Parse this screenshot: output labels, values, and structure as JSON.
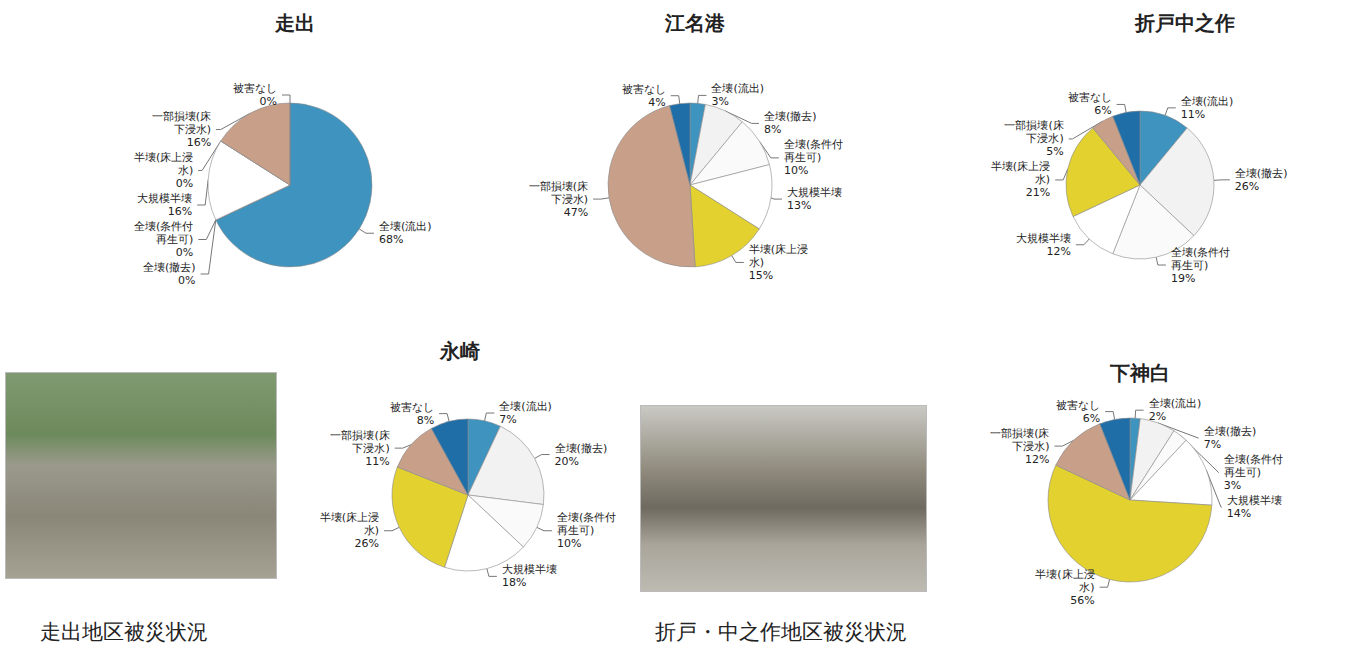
{
  "chart_data": [
    {
      "type": "pie",
      "title": "走出",
      "categories": [
        "全壊(流出)",
        "全壊(撤去)",
        "全壊(条件付再生可)",
        "大規模半壊",
        "半壊(床上浸水)",
        "一部損壊(床下浸水)",
        "被害なし"
      ],
      "values": [
        68,
        0,
        0,
        16,
        0,
        16,
        0
      ],
      "value_labels": [
        "68%",
        "0%",
        "0%",
        "16%",
        "0%",
        "16%",
        "0%"
      ],
      "colors": [
        "#3f93bf",
        "#f2f2f2",
        "#fafafa",
        "#ffffff",
        "#e3d130",
        "#c8a08a",
        "#1f6ea8"
      ],
      "data_labels": true
    },
    {
      "type": "pie",
      "title": "江名港",
      "categories": [
        "全壊(流出)",
        "全壊(撤去)",
        "全壊(条件付再生可)",
        "大規模半壊",
        "半壊(床上浸水)",
        "一部損壊(床下浸水)",
        "被害なし"
      ],
      "values": [
        3,
        8,
        10,
        13,
        15,
        47,
        4
      ],
      "value_labels": [
        "3%",
        "8%",
        "10%",
        "13%",
        "15%",
        "47%",
        "4%"
      ],
      "colors": [
        "#3f93bf",
        "#f2f2f2",
        "#fafafa",
        "#ffffff",
        "#e3d130",
        "#c8a08a",
        "#1f6ea8"
      ],
      "data_labels": true
    },
    {
      "type": "pie",
      "title": "折戸中之作",
      "categories": [
        "全壊(流出)",
        "全壊(撤去)",
        "全壊(条件付再生可)",
        "大規模半壊",
        "半壊(床上浸水)",
        "一部損壊(床下浸水)",
        "被害なし"
      ],
      "values": [
        11,
        26,
        19,
        12,
        21,
        5,
        6
      ],
      "value_labels": [
        "11%",
        "26%",
        "19%",
        "12%",
        "21%",
        "5%",
        "6%"
      ],
      "colors": [
        "#3f93bf",
        "#f2f2f2",
        "#fafafa",
        "#ffffff",
        "#e3d130",
        "#c8a08a",
        "#1f6ea8"
      ],
      "data_labels": true
    },
    {
      "type": "pie",
      "title": "永崎",
      "categories": [
        "全壊(流出)",
        "全壊(撤去)",
        "全壊(条件付再生可)",
        "大規模半壊",
        "半壊(床上浸水)",
        "一部損壊(床下浸水)",
        "被害なし"
      ],
      "values": [
        7,
        20,
        10,
        18,
        26,
        11,
        8
      ],
      "value_labels": [
        "7%",
        "20%",
        "10%",
        "18%",
        "26%",
        "11%",
        "8%"
      ],
      "colors": [
        "#3f93bf",
        "#f2f2f2",
        "#fafafa",
        "#ffffff",
        "#e3d130",
        "#c8a08a",
        "#1f6ea8"
      ],
      "data_labels": true
    },
    {
      "type": "pie",
      "title": "下神白",
      "categories": [
        "全壊(流出)",
        "全壊(撤去)",
        "全壊(条件付再生可)",
        "大規模半壊",
        "半壊(床上浸水)",
        "一部損壊(床下浸水)",
        "被害なし"
      ],
      "values": [
        2,
        7,
        3,
        14,
        56,
        12,
        6
      ],
      "value_labels": [
        "2%",
        "7%",
        "3%",
        "14%",
        "56%",
        "12%",
        "6%"
      ],
      "colors": [
        "#3f93bf",
        "#f2f2f2",
        "#fafafa",
        "#ffffff",
        "#e3d130",
        "#c8a08a",
        "#1f6ea8"
      ],
      "data_labels": true
    }
  ],
  "photo_captions": [
    "走出地区被災状況",
    "折戸・中之作地区被災状況"
  ]
}
